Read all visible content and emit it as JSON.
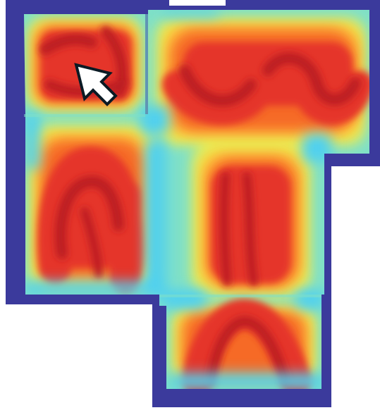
{
  "map": {
    "type": "floorplan-heatmap",
    "colors": {
      "background": "#ffffff",
      "wall": "#3b3a9c",
      "cold": "#4fd0f0",
      "cool": "#7fe0c8",
      "mild": "#e8ee55",
      "warm": "#ffc33a",
      "hot": "#f66a28",
      "hotter": "#e5362a",
      "peak": "#bc1f22",
      "cursor_fill": "#ffffff",
      "cursor_stroke": "#0b1a24"
    },
    "cursor_icon": "arrow-cursor-icon"
  }
}
